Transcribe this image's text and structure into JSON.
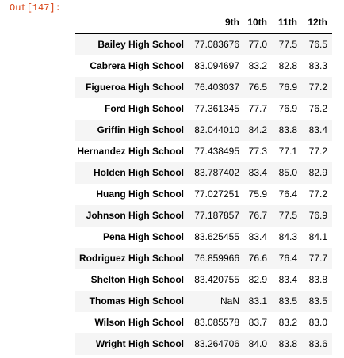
{
  "output_prompt": "Out[147]:",
  "table": {
    "columns": [
      "",
      "9th",
      "10th",
      "11th",
      "12th"
    ],
    "rows": [
      {
        "school": "Bailey High School",
        "g9": "77.083676",
        "g10": "77.0",
        "g11": "77.5",
        "g12": "76.5"
      },
      {
        "school": "Cabrera High School",
        "g9": "83.094697",
        "g10": "83.2",
        "g11": "82.8",
        "g12": "83.3"
      },
      {
        "school": "Figueroa High School",
        "g9": "76.403037",
        "g10": "76.5",
        "g11": "76.9",
        "g12": "77.2"
      },
      {
        "school": "Ford High School",
        "g9": "77.361345",
        "g10": "77.7",
        "g11": "76.9",
        "g12": "76.2"
      },
      {
        "school": "Griffin High School",
        "g9": "82.044010",
        "g10": "84.2",
        "g11": "83.8",
        "g12": "83.4"
      },
      {
        "school": "Hernandez High School",
        "g9": "77.438495",
        "g10": "77.3",
        "g11": "77.1",
        "g12": "77.2"
      },
      {
        "school": "Holden High School",
        "g9": "83.787402",
        "g10": "83.4",
        "g11": "85.0",
        "g12": "82.9"
      },
      {
        "school": "Huang High School",
        "g9": "77.027251",
        "g10": "75.9",
        "g11": "76.4",
        "g12": "77.2"
      },
      {
        "school": "Johnson High School",
        "g9": "77.187857",
        "g10": "76.7",
        "g11": "77.5",
        "g12": "76.9"
      },
      {
        "school": "Pena High School",
        "g9": "83.625455",
        "g10": "83.4",
        "g11": "84.3",
        "g12": "84.1"
      },
      {
        "school": "Rodriguez High School",
        "g9": "76.859966",
        "g10": "76.6",
        "g11": "76.4",
        "g12": "77.7"
      },
      {
        "school": "Shelton High School",
        "g9": "83.420755",
        "g10": "82.9",
        "g11": "83.4",
        "g12": "83.8"
      },
      {
        "school": "Thomas High School",
        "g9": "NaN",
        "g10": "83.1",
        "g11": "83.5",
        "g12": "83.5"
      },
      {
        "school": "Wilson High School",
        "g9": "83.085578",
        "g10": "83.7",
        "g11": "83.2",
        "g12": "83.0"
      },
      {
        "school": "Wright High School",
        "g9": "83.264706",
        "g10": "84.0",
        "g11": "83.8",
        "g12": "83.6"
      }
    ]
  }
}
